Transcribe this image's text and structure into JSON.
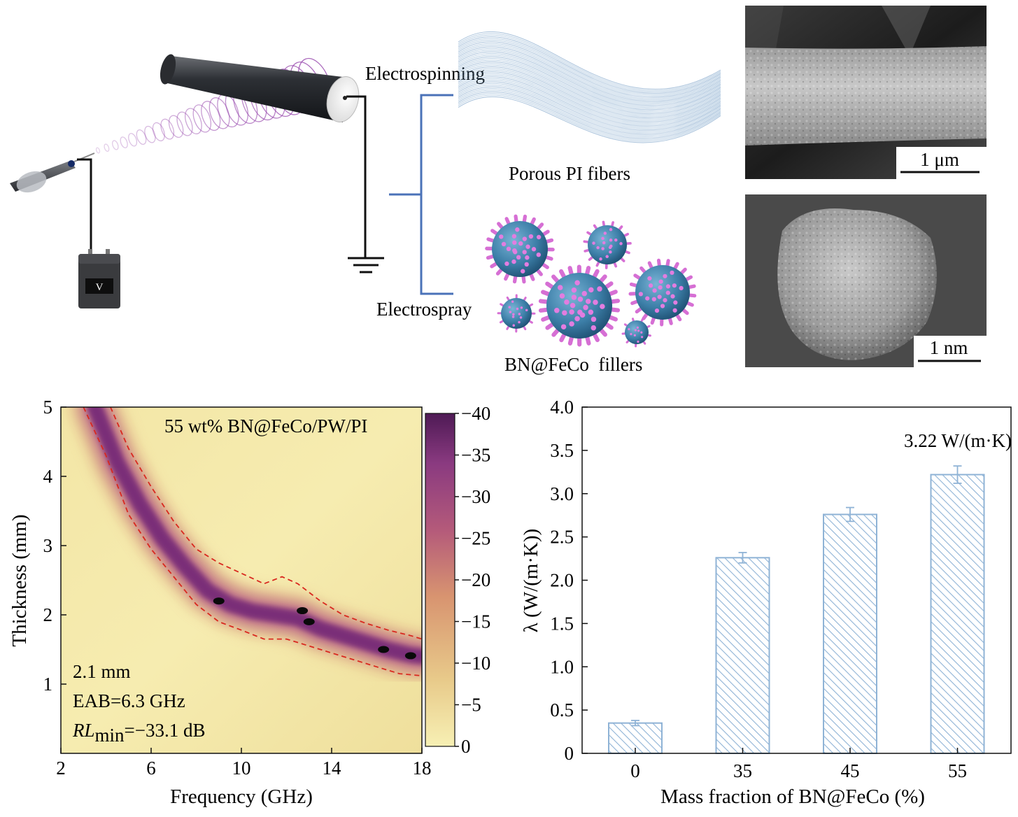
{
  "schematic": {
    "meter_label": "V",
    "electrospinning_label": "Electrospinning",
    "electrospray_label": "Electrospray",
    "fibers_label": "Porous PI fibers",
    "fillers_label": "BN@FeCo  fillers"
  },
  "sem": {
    "fiber_scale_label": "1 μm",
    "particle_scale_label": "1 nm"
  },
  "heatmap": {
    "annotation": "55 wt% BN@FeCo/PW/PI",
    "info_line1": "2.1 mm",
    "info_line2": "EAB=6.3 GHz",
    "info_rl_italic": "RL",
    "info_rl_sub": "min",
    "info_rl_value": "=−33.1 dB"
  },
  "chart_data": [
    {
      "type": "heatmap",
      "xlabel": "Frequency (GHz)",
      "ylabel": "Thickness (mm)",
      "xlim": [
        2,
        18
      ],
      "ylim": [
        0,
        5
      ],
      "xticks": [
        2,
        6,
        10,
        14,
        18
      ],
      "yticks": [
        1,
        2,
        3,
        4,
        5
      ],
      "colorbar": {
        "range": [
          0,
          -40
        ],
        "ticks": [
          "−40",
          "−35",
          "−30",
          "−25",
          "−20",
          "−15",
          "−10",
          "−5",
          "0"
        ],
        "colors": [
          "#f7f0b4",
          "#e8ca8a",
          "#d89470",
          "#b45a7a",
          "#8a3a80",
          "#4e1a55"
        ]
      },
      "ridge": {
        "frequency": [
          3.5,
          4.5,
          5.5,
          6.5,
          7.5,
          8.5,
          9.5,
          10.5,
          11.5,
          12.5,
          13.5,
          14.5,
          15.5,
          16.5,
          17.5,
          18
        ],
        "thickness": [
          5.0,
          4.2,
          3.6,
          3.1,
          2.7,
          2.35,
          2.15,
          2.05,
          2.0,
          1.95,
          1.8,
          1.7,
          1.6,
          1.5,
          1.42,
          1.4
        ]
      },
      "boundary_upper": {
        "frequency": [
          4.2,
          5.0,
          6.0,
          7.0,
          8.0,
          9.0,
          10.0,
          11.0,
          11.8,
          12.5,
          13.5,
          14.5,
          15.5,
          16.5,
          17.5,
          18.0
        ],
        "thickness": [
          5.0,
          4.4,
          3.85,
          3.35,
          2.95,
          2.75,
          2.6,
          2.45,
          2.55,
          2.45,
          2.2,
          2.0,
          1.88,
          1.78,
          1.7,
          1.65
        ]
      },
      "boundary_lower": {
        "frequency": [
          3.0,
          4.0,
          5.0,
          6.0,
          7.0,
          8.0,
          9.0,
          10.0,
          11.0,
          12.0,
          13.0,
          14.0,
          15.0,
          16.0,
          17.0,
          18.0
        ],
        "thickness": [
          5.0,
          4.3,
          3.45,
          2.95,
          2.55,
          2.15,
          1.9,
          1.78,
          1.65,
          1.65,
          1.55,
          1.45,
          1.35,
          1.25,
          1.15,
          1.12
        ]
      },
      "minima": [
        {
          "frequency": 9.0,
          "thickness": 2.2
        },
        {
          "frequency": 12.7,
          "thickness": 2.06
        },
        {
          "frequency": 13.0,
          "thickness": 1.9
        },
        {
          "frequency": 16.3,
          "thickness": 1.5
        },
        {
          "frequency": 17.5,
          "thickness": 1.41
        }
      ]
    },
    {
      "type": "bar",
      "categories": [
        "0",
        "35",
        "45",
        "55"
      ],
      "values": [
        0.35,
        2.26,
        2.76,
        3.22
      ],
      "errors": [
        0.03,
        0.06,
        0.08,
        0.1
      ],
      "xlabel": "Mass fraction of BN@FeCo (%)",
      "ylabel": "λ (W/(m·K))",
      "ylim": [
        0,
        4.0
      ],
      "yticks": [
        "0",
        "0.5",
        "1.0",
        "1.5",
        "2.0",
        "2.5",
        "3.0",
        "3.5",
        "4.0"
      ],
      "annotation": "3.22 W/(m·K)",
      "bar_color": "#8fb3d6",
      "grid": false
    }
  ]
}
